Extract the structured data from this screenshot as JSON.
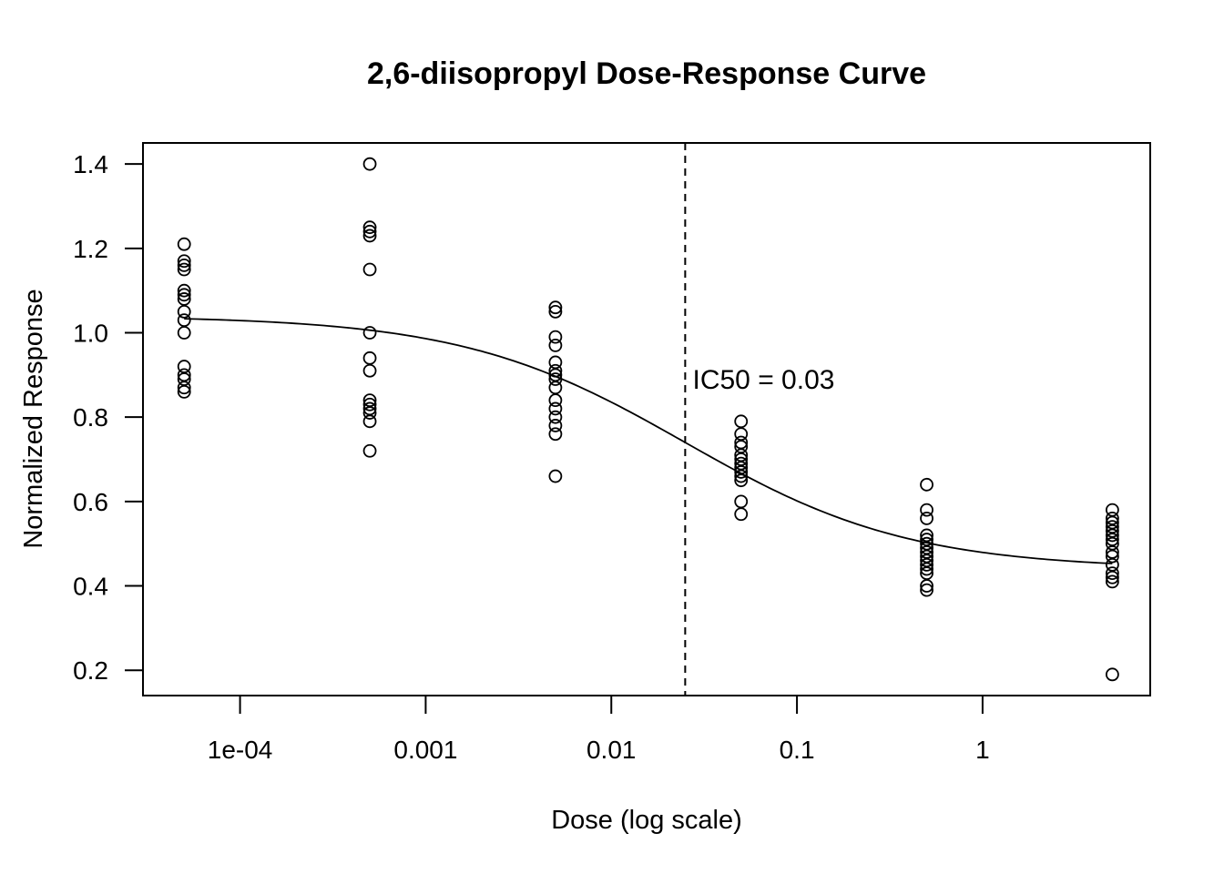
{
  "chart_data": {
    "type": "scatter",
    "title": "2,6-diisopropyl Dose-Response Curve",
    "xlabel": "Dose (log scale)",
    "ylabel": "Normalized Response",
    "x_scale": "log",
    "xlim": [
      3e-05,
      8
    ],
    "ylim": [
      0.14,
      1.45
    ],
    "x_ticks": [
      {
        "value": 0.0001,
        "label": "1e-04"
      },
      {
        "value": 0.001,
        "label": "0.001"
      },
      {
        "value": 0.01,
        "label": "0.01"
      },
      {
        "value": 0.1,
        "label": "0.1"
      },
      {
        "value": 1,
        "label": "1"
      }
    ],
    "y_ticks": [
      {
        "value": 0.2,
        "label": "0.2"
      },
      {
        "value": 0.4,
        "label": "0.4"
      },
      {
        "value": 0.6,
        "label": "0.6"
      },
      {
        "value": 0.8,
        "label": "0.8"
      },
      {
        "value": 1.0,
        "label": "1.0"
      },
      {
        "value": 1.2,
        "label": "1.2"
      },
      {
        "value": 1.4,
        "label": "1.4"
      }
    ],
    "grid": false,
    "points": [
      {
        "dose": 5e-05,
        "responses": [
          1.21,
          1.17,
          1.16,
          1.15,
          1.1,
          1.09,
          1.08,
          1.05,
          1.03,
          1.0,
          0.92,
          0.9,
          0.89,
          0.87,
          0.86
        ]
      },
      {
        "dose": 0.0005,
        "responses": [
          1.4,
          1.25,
          1.24,
          1.23,
          1.15,
          1.0,
          0.94,
          0.91,
          0.84,
          0.83,
          0.82,
          0.81,
          0.79,
          0.72
        ]
      },
      {
        "dose": 0.005,
        "responses": [
          1.06,
          1.05,
          0.99,
          0.97,
          0.93,
          0.91,
          0.9,
          0.89,
          0.87,
          0.84,
          0.82,
          0.8,
          0.78,
          0.76,
          0.66
        ]
      },
      {
        "dose": 0.05,
        "responses": [
          0.79,
          0.76,
          0.74,
          0.73,
          0.71,
          0.7,
          0.69,
          0.68,
          0.67,
          0.66,
          0.65,
          0.6,
          0.57
        ]
      },
      {
        "dose": 0.5,
        "responses": [
          0.64,
          0.58,
          0.56,
          0.52,
          0.51,
          0.5,
          0.49,
          0.48,
          0.47,
          0.46,
          0.45,
          0.44,
          0.43,
          0.4,
          0.39
        ]
      },
      {
        "dose": 5,
        "responses": [
          0.58,
          0.56,
          0.55,
          0.54,
          0.53,
          0.52,
          0.51,
          0.5,
          0.48,
          0.47,
          0.45,
          0.43,
          0.42,
          0.41,
          0.19
        ]
      }
    ],
    "fit_curve": {
      "model": "4-parameter logistic",
      "bottom": 0.44,
      "top": 1.04,
      "ic50": 0.025,
      "hill_slope": 0.72
    },
    "ic50_line": {
      "x": 0.025,
      "style": "dashed"
    },
    "annotations": [
      {
        "text": "IC50 = 0.03",
        "x": 0.03,
        "y": 0.88
      }
    ]
  }
}
